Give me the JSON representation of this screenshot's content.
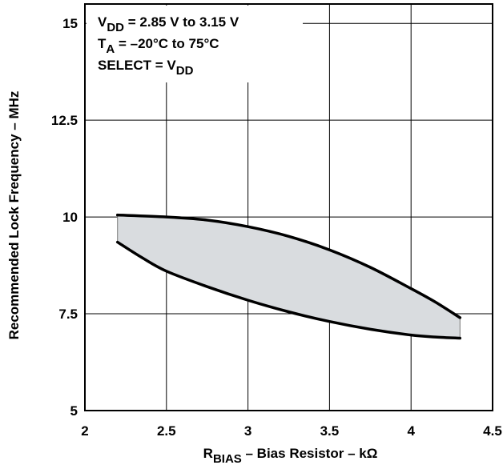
{
  "chart_data": {
    "type": "area",
    "xlabel_main": "R",
    "xlabel_sub": "BIAS",
    "xlabel_rest": " – Bias Resistor – kΩ",
    "ylabel": "Recommended Lock Frequency – MHz",
    "xlim": [
      2,
      4.5
    ],
    "ylim": [
      5,
      15.5
    ],
    "x_ticks": [
      2,
      2.5,
      3,
      3.5,
      4,
      4.5
    ],
    "x_tick_labels": [
      "2",
      "2.5",
      "3",
      "3.5",
      "4",
      "4.5"
    ],
    "y_ticks": [
      5,
      7.5,
      10,
      12.5,
      15
    ],
    "y_tick_labels": [
      "5",
      "7.5",
      "10",
      "12.5",
      "15"
    ],
    "grid": true,
    "annotations": [
      {
        "main": "V",
        "sub": "DD",
        "rest": " = 2.85 V to 3.15 V"
      },
      {
        "main": "T",
        "sub": "A",
        "rest": " = –20°C to 75°C"
      },
      {
        "main": "SELECT = V",
        "sub": "DD",
        "rest": ""
      }
    ],
    "series": [
      {
        "role": "upper",
        "x": [
          2.2,
          2.5,
          2.75,
          3.0,
          3.25,
          3.5,
          3.75,
          4.0,
          4.15,
          4.3
        ],
        "y": [
          10.05,
          10.0,
          9.92,
          9.75,
          9.5,
          9.15,
          8.7,
          8.15,
          7.8,
          7.4
        ]
      },
      {
        "role": "lower",
        "x": [
          2.2,
          2.35,
          2.5,
          2.75,
          3.0,
          3.25,
          3.5,
          3.75,
          4.0,
          4.15,
          4.3
        ],
        "y": [
          9.35,
          8.95,
          8.6,
          8.2,
          7.85,
          7.55,
          7.3,
          7.1,
          6.95,
          6.9,
          6.87
        ]
      }
    ],
    "fill_color": "#d9dcdf",
    "line_color": "#000000"
  }
}
